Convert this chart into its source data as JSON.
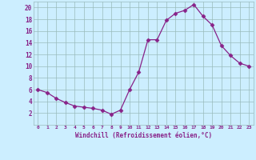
{
  "x": [
    0,
    1,
    2,
    3,
    4,
    5,
    6,
    7,
    8,
    9,
    10,
    11,
    12,
    13,
    14,
    15,
    16,
    17,
    18,
    19,
    20,
    21,
    22,
    23
  ],
  "y": [
    6,
    5.5,
    4.5,
    3.8,
    3.2,
    3,
    2.8,
    2.5,
    1.8,
    2.5,
    6,
    9,
    14.5,
    14.5,
    17.8,
    19,
    19.5,
    20.5,
    18.5,
    17,
    13.5,
    11.8,
    10.5,
    10
  ],
  "line_color": "#882288",
  "marker": "D",
  "marker_size": 2.5,
  "bg_color": "#cceeff",
  "grid_color": "#99bbbb",
  "xlabel": "Windchill (Refroidissement éolien,°C)",
  "xlabel_color": "#882288",
  "tick_color": "#882288",
  "ylim": [
    0,
    21
  ],
  "xlim": [
    -0.5,
    23.5
  ],
  "ytick_vals": [
    2,
    4,
    6,
    8,
    10,
    12,
    14,
    16,
    18,
    20
  ],
  "ytick_labels": [
    "2",
    "4",
    "6",
    "8",
    "10",
    "12",
    "14",
    "16",
    "18",
    "20"
  ],
  "xtick_vals": [
    0,
    1,
    2,
    3,
    4,
    5,
    6,
    7,
    8,
    9,
    10,
    11,
    12,
    13,
    14,
    15,
    16,
    17,
    18,
    19,
    20,
    21,
    22,
    23
  ],
  "xtick_labels": [
    "0",
    "1",
    "2",
    "3",
    "4",
    "5",
    "6",
    "7",
    "8",
    "9",
    "10",
    "11",
    "12",
    "13",
    "14",
    "15",
    "16",
    "17",
    "18",
    "19",
    "20",
    "21",
    "22",
    "23"
  ]
}
